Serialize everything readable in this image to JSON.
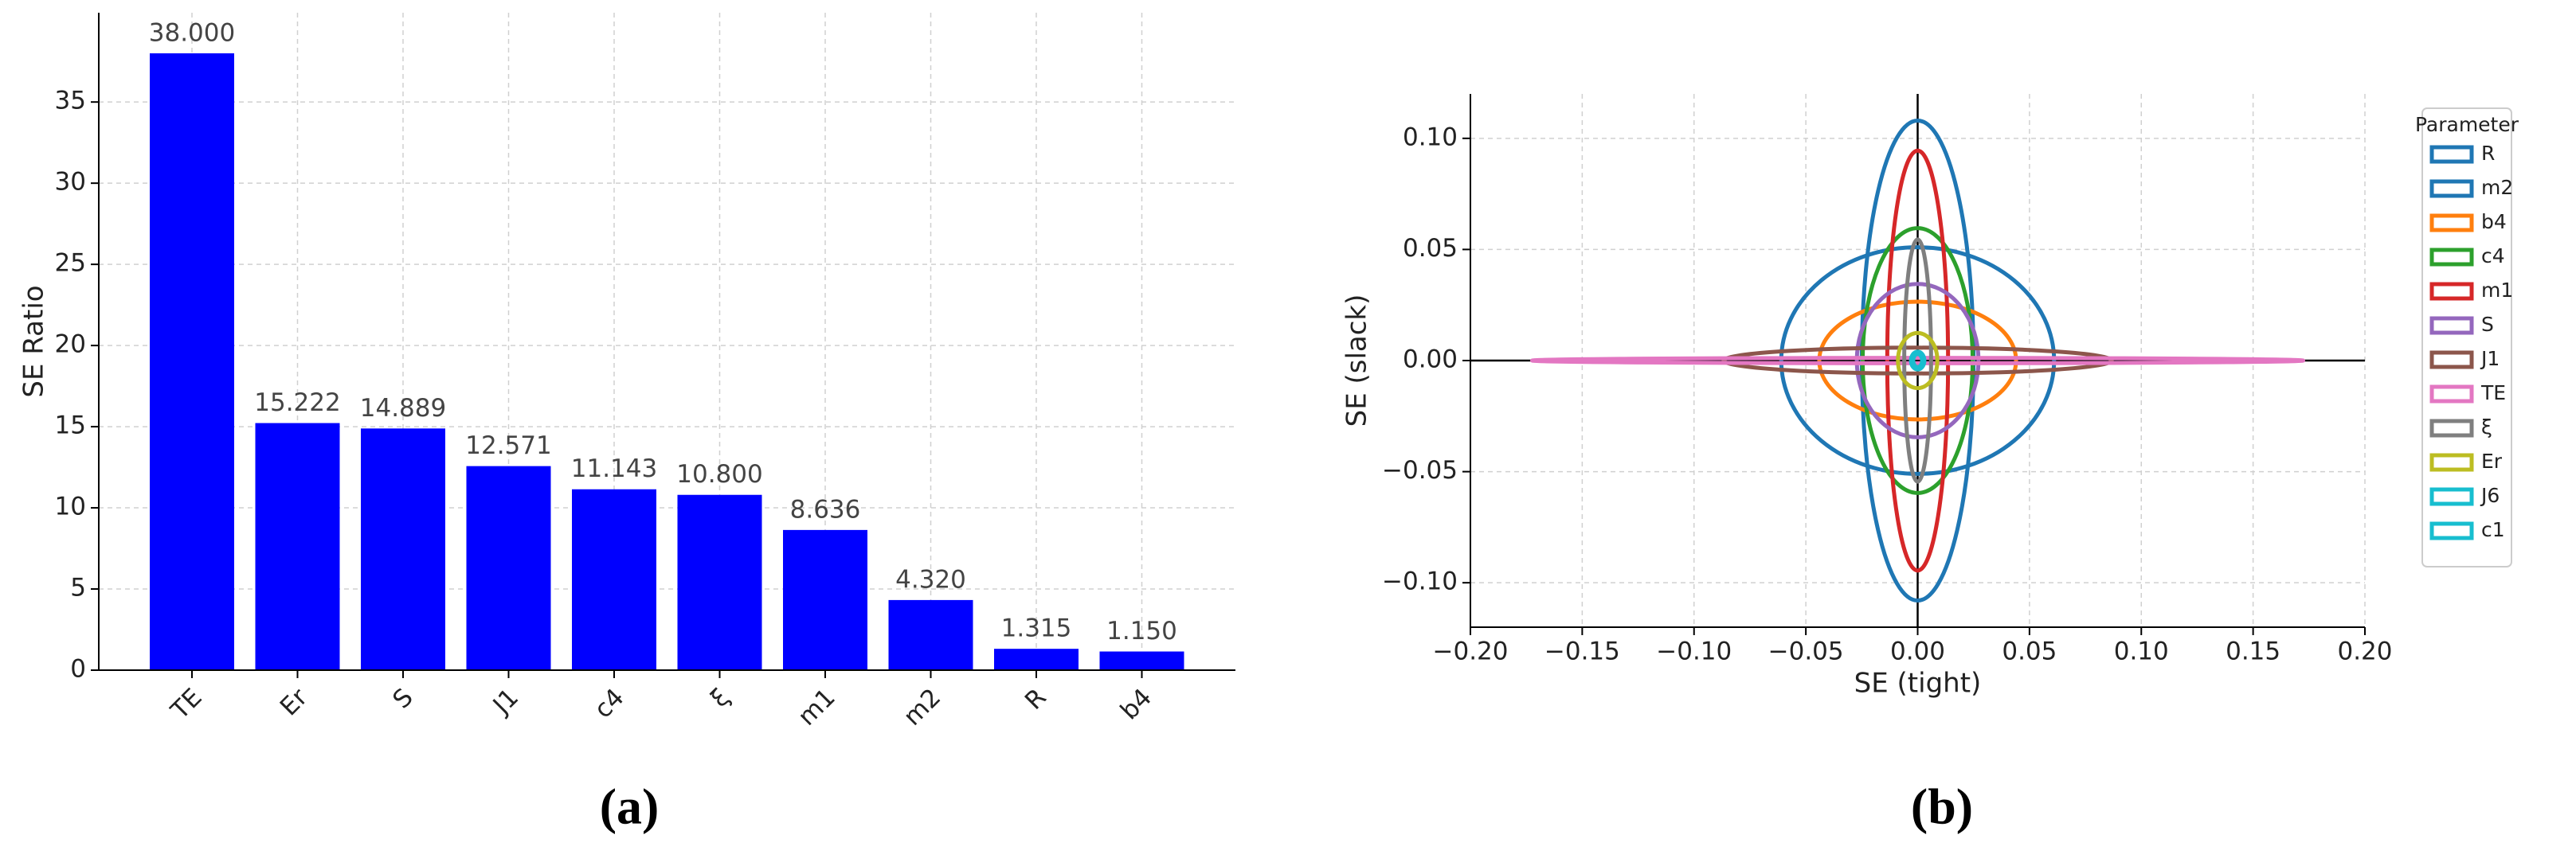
{
  "chart_data": [
    {
      "type": "bar",
      "caption": "(a)",
      "ylabel": "SE Ratio",
      "categories": [
        "TE",
        "Er",
        "S",
        "J1",
        "c4",
        "ξ",
        "m1",
        "m2",
        "R",
        "b4"
      ],
      "values": [
        38,
        15.222,
        14.889,
        12.571,
        11.143,
        10.8,
        8.636,
        4.32,
        1.315,
        1.15
      ],
      "value_labels": [
        "38.000",
        "15.222",
        "14.889",
        "12.571",
        "11.143",
        "10.800",
        "8.636",
        "4.320",
        "1.315",
        "1.150"
      ],
      "color": "#0000ff",
      "ylim": [
        0,
        40.5
      ],
      "yticks": [
        0,
        5,
        10,
        15,
        20,
        25,
        30,
        35
      ],
      "grid": true
    },
    {
      "type": "ellipse",
      "caption": "(b)",
      "xlabel": "SE (tight)",
      "ylabel": "SE (slack)",
      "legend_title": "Parameter",
      "legend": "outside right",
      "xlim": [
        -0.2,
        0.2
      ],
      "ylim": [
        -0.12,
        0.12
      ],
      "grid": true,
      "zero_lines": true,
      "xticks": [
        {
          "value": -0.2,
          "label": "−0.20"
        },
        {
          "value": -0.15,
          "label": "−0.15"
        },
        {
          "value": -0.1,
          "label": "−0.10"
        },
        {
          "value": -0.05,
          "label": "−0.05"
        },
        {
          "value": 0,
          "label": "0.00"
        },
        {
          "value": 0.05,
          "label": "0.05"
        },
        {
          "value": 0.1,
          "label": "0.10"
        },
        {
          "value": 0.15,
          "label": "0.15"
        },
        {
          "value": 0.2,
          "label": "0.20"
        }
      ],
      "yticks": [
        {
          "value": -0.1,
          "label": "−0.10"
        },
        {
          "value": -0.05,
          "label": "−0.05"
        },
        {
          "value": 0,
          "label": "0.00"
        },
        {
          "value": 0.05,
          "label": "0.05"
        },
        {
          "value": 0.1,
          "label": "0.10"
        }
      ],
      "series": [
        {
          "name": "R",
          "color": "#1f77b4",
          "semi_x": 0.061,
          "semi_y": 0.051
        },
        {
          "name": "m2",
          "color": "#1f77b4",
          "semi_x": 0.025,
          "semi_y": 0.108
        },
        {
          "name": "b4",
          "color": "#ff7f0e",
          "semi_x": 0.044,
          "semi_y": 0.0265
        },
        {
          "name": "c4",
          "color": "#2ca02c",
          "semi_x": 0.0246,
          "semi_y": 0.0596
        },
        {
          "name": "m1",
          "color": "#d62728",
          "semi_x": 0.0136,
          "semi_y": 0.0945
        },
        {
          "name": "S",
          "color": "#9467bd",
          "semi_x": 0.0272,
          "semi_y": 0.0345
        },
        {
          "name": "J1",
          "color": "#8c564b",
          "semi_x": 0.0868,
          "semi_y": 0.0058
        },
        {
          "name": "TE",
          "color": "#e377c2",
          "semi_x": 0.1724,
          "semi_y": 0.0012
        },
        {
          "name": "ξ",
          "color": "#7f7f7f",
          "semi_x": 0.006,
          "semi_y": 0.0545
        },
        {
          "name": "Er",
          "color": "#bcbd22",
          "semi_x": 0.0088,
          "semi_y": 0.0124
        },
        {
          "name": "J6",
          "color": "#17becf",
          "semi_x": 0.003,
          "semi_y": 0.004
        },
        {
          "name": "c1",
          "color": "#17becf",
          "semi_x": 0.002,
          "semi_y": 0.003
        }
      ]
    }
  ]
}
